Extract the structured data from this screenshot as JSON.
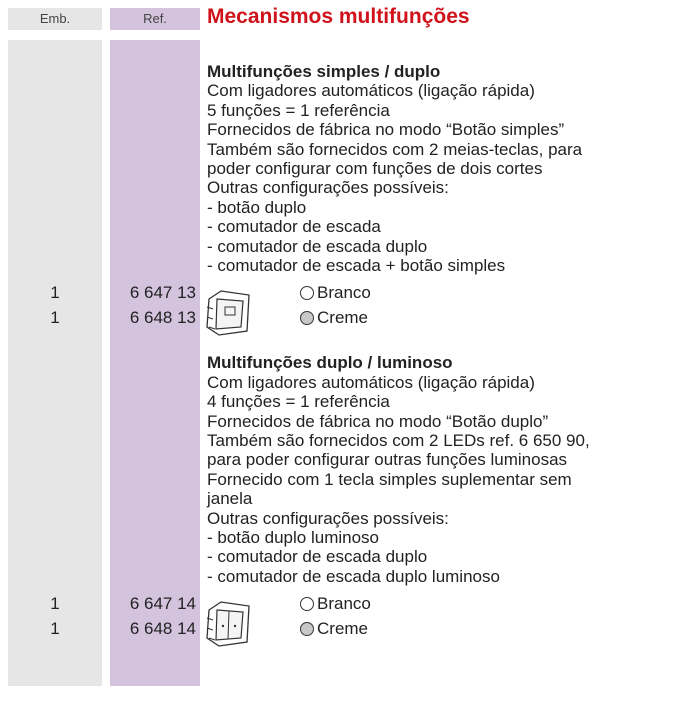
{
  "header": {
    "emb": "Emb.",
    "ref": "Ref.",
    "title": "Mecanismos multifunções"
  },
  "sections": [
    {
      "title": "Multifunções simples / duplo",
      "lines": [
        "Com ligadores automáticos (ligação rápida)",
        "5 funções = 1 referência",
        "Fornecidos de fábrica no modo “Botão simples”",
        "Também são fornecidos com 2 meias-teclas, para",
        "poder configurar com funções de dois cortes",
        "Outras configurações possíveis:",
        "- botão duplo",
        "- comutador de escada",
        "- comutador de escada duplo",
        "- comutador de escada + botão simples"
      ],
      "items": [
        {
          "emb": "1",
          "ref": "6 647 13",
          "finish": "Branco"
        },
        {
          "emb": "1",
          "ref": "6 648 13",
          "finish": "Creme"
        }
      ]
    },
    {
      "title": "Multifunções duplo / luminoso",
      "lines": [
        "Com ligadores automáticos (ligação rápida)",
        "4 funções = 1 referência",
        "Fornecidos de fábrica no modo “Botão duplo”",
        "Também são fornecidos com 2 LEDs ref. 6 650 90,",
        "para poder configurar outras funções luminosas",
        "Fornecido com 1 tecla simples suplementar sem",
        "janela",
        "Outras configurações possíveis:",
        "- botão duplo luminoso",
        "- comutador de escada duplo",
        "- comutador de escada duplo luminoso"
      ],
      "items": [
        {
          "emb": "1",
          "ref": "6 647 14",
          "finish": "Branco"
        },
        {
          "emb": "1",
          "ref": "6 648 14",
          "finish": "Creme"
        }
      ]
    }
  ]
}
